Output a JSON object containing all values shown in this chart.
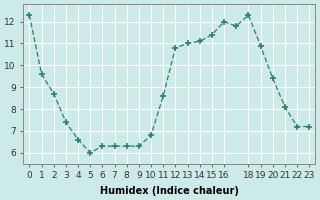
{
  "x": [
    0,
    1,
    2,
    3,
    4,
    5,
    6,
    7,
    8,
    9,
    10,
    11,
    12,
    13,
    14,
    15,
    16,
    17,
    18,
    19,
    20,
    21,
    22,
    23
  ],
  "y": [
    12.3,
    9.6,
    8.7,
    7.4,
    6.6,
    6.0,
    6.3,
    6.3,
    6.3,
    6.3,
    6.8,
    8.6,
    10.8,
    11.0,
    11.1,
    11.4,
    12.0,
    11.8,
    12.3,
    10.9,
    9.4,
    8.1,
    7.2,
    7.2
  ],
  "xlabel": "Humidex (Indice chaleur)",
  "xlim": [
    -0.5,
    23.5
  ],
  "ylim": [
    5.5,
    12.8
  ],
  "yticks": [
    6,
    7,
    8,
    9,
    10,
    11,
    12
  ],
  "xticks": [
    0,
    1,
    2,
    3,
    4,
    5,
    6,
    7,
    8,
    9,
    10,
    11,
    12,
    13,
    14,
    15,
    16,
    18,
    19,
    20,
    21,
    22,
    23
  ],
  "xtick_labels": [
    "0",
    "1",
    "2",
    "3",
    "4",
    "5",
    "6",
    "7",
    "8",
    "9",
    "10",
    "11",
    "12",
    "13",
    "14",
    "15",
    "16",
    "18",
    "19",
    "20",
    "21",
    "22",
    "23"
  ],
  "line_color": "#2e7d6e",
  "marker": "P",
  "bg_color": "#cceae7",
  "grid_color": "#ffffff",
  "label_fontsize": 7,
  "tick_fontsize": 6.5
}
